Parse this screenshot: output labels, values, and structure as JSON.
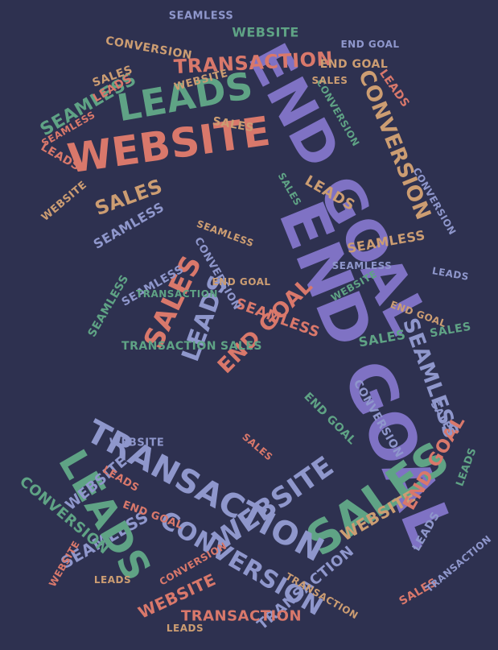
{
  "background_color": "#2e3150",
  "palette": {
    "green": "#5fa385",
    "red": "#d9786b",
    "purple": "#7f72c4",
    "tan": "#cc9d72",
    "lavender": "#8f97cc"
  },
  "shape": "digit-three",
  "words": [
    {
      "text": "END GOAL",
      "color": "purple"
    },
    {
      "text": "END GOAL",
      "color": "purple"
    },
    {
      "text": "WEBSITE",
      "color": "red"
    },
    {
      "text": "LEADS",
      "color": "green"
    },
    {
      "text": "TRANSACTION",
      "color": "red"
    },
    {
      "text": "CONVERSION",
      "color": "tan"
    },
    {
      "text": "SEAMLESS",
      "color": "green"
    },
    {
      "text": "SEAMLESS",
      "color": "lavender"
    },
    {
      "text": "SALES",
      "color": "tan"
    },
    {
      "text": "SALES",
      "color": "red"
    },
    {
      "text": "SALES",
      "color": "green"
    },
    {
      "text": "LEADS",
      "color": "lavender"
    },
    {
      "text": "SEAMLESS",
      "color": "red"
    },
    {
      "text": "WEBSITE",
      "color": "lavender"
    },
    {
      "text": "WEBSITE",
      "color": "tan"
    },
    {
      "text": "TRANSACTION",
      "color": "lavender"
    },
    {
      "text": "SEAMLESS",
      "color": "lavender"
    },
    {
      "text": "LEADS",
      "color": "green"
    },
    {
      "text": "END GOAL",
      "color": "red"
    },
    {
      "text": "CONVERSION",
      "color": "green"
    },
    {
      "text": "SALES",
      "color": "tan"
    },
    {
      "text": "LEADS",
      "color": "red"
    },
    {
      "text": "END GOAL",
      "color": "tan"
    },
    {
      "text": "SALES",
      "color": "green"
    },
    {
      "text": "LEADS",
      "color": "tan"
    },
    {
      "text": "SEAMLESS",
      "color": "lavender"
    },
    {
      "text": "CONVERSION",
      "color": "lavender"
    },
    {
      "text": "SEAMLESS",
      "color": "green"
    },
    {
      "text": "LEADS",
      "color": "red"
    },
    {
      "text": "TRANSACTION",
      "color": "green"
    },
    {
      "text": "WEBSITE",
      "color": "lavender"
    },
    {
      "text": "CONVERSION",
      "color": "lavender"
    },
    {
      "text": "TRANSACTION",
      "color": "lavender"
    },
    {
      "text": "SALES",
      "color": "green"
    },
    {
      "text": "END GOAL",
      "color": "red"
    },
    {
      "text": "SEAMLESS",
      "color": "lavender"
    },
    {
      "text": "WEBSITE",
      "color": "tan"
    },
    {
      "text": "LEADS",
      "color": "red"
    },
    {
      "text": "SALES",
      "color": "tan"
    },
    {
      "text": "CONVERSION",
      "color": "tan"
    },
    {
      "text": "END GOAL",
      "color": "tan"
    },
    {
      "text": "WEBSITE",
      "color": "red"
    },
    {
      "text": "TRANSACTION",
      "color": "red"
    },
    {
      "text": "LEADS",
      "color": "lavender"
    },
    {
      "text": "SEAMLESS",
      "color": "tan"
    },
    {
      "text": "SALES",
      "color": "green"
    },
    {
      "text": "WEBSITE",
      "color": "green"
    },
    {
      "text": "SALES",
      "color": "red"
    },
    {
      "text": "END GOAL",
      "color": "green"
    },
    {
      "text": "TRANSACTION",
      "color": "lavender"
    },
    {
      "text": "LEADS",
      "color": "tan"
    },
    {
      "text": "CONVERSION",
      "color": "lavender"
    },
    {
      "text": "SEAMLESS",
      "color": "lavender"
    },
    {
      "text": "WEBSITE",
      "color": "tan"
    },
    {
      "text": "END GOAL",
      "color": "red"
    },
    {
      "text": "SALES",
      "color": "lavender"
    },
    {
      "text": "LEADS",
      "color": "green"
    },
    {
      "text": "TRANSACTION",
      "color": "tan"
    },
    {
      "text": "CONVERSION",
      "color": "green"
    },
    {
      "text": "SEAMLESS",
      "color": "red"
    },
    {
      "text": "WEBSITE",
      "color": "lavender"
    },
    {
      "text": "LEADS",
      "color": "red"
    },
    {
      "text": "SALES",
      "color": "tan"
    },
    {
      "text": "END GOAL",
      "color": "lavender"
    },
    {
      "text": "CONVERSION",
      "color": "red"
    },
    {
      "text": "TRANSACTION",
      "color": "green"
    },
    {
      "text": "SEAMLESS",
      "color": "tan"
    },
    {
      "text": "WEBSITE",
      "color": "green"
    },
    {
      "text": "LEADS",
      "color": "lavender"
    },
    {
      "text": "SALES",
      "color": "red"
    },
    {
      "text": "END GOAL",
      "color": "tan"
    },
    {
      "text": "CONVERSION",
      "color": "lavender"
    },
    {
      "text": "WEBSITE",
      "color": "red"
    },
    {
      "text": "SEAMLESS",
      "color": "lavender"
    },
    {
      "text": "LEADS",
      "color": "tan"
    },
    {
      "text": "SALES",
      "color": "green"
    }
  ]
}
